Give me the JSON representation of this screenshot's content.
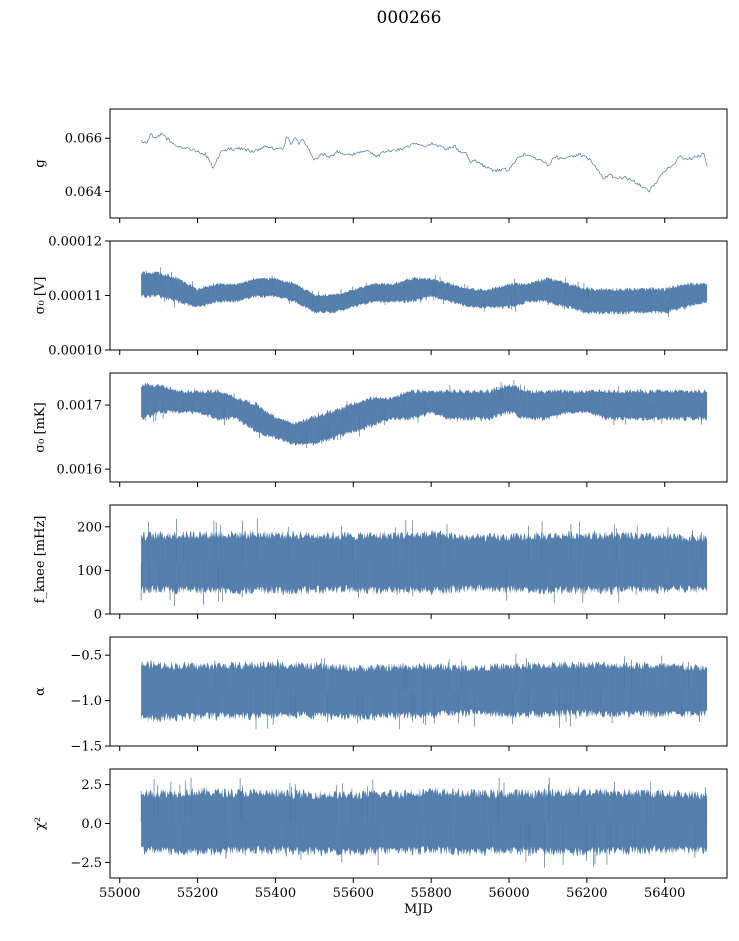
{
  "figure_title": "000266",
  "chart_data": [
    {
      "type": "line",
      "ylabel": "g",
      "ylim": [
        0.063,
        0.0671
      ],
      "yticks": [
        0.064,
        0.066
      ],
      "ytick_labels": [
        "0.064",
        "0.066"
      ],
      "xlim": [
        54975,
        56560
      ],
      "series": [
        {
          "x": [
            55055,
            55070,
            55080,
            55090,
            55100,
            55110,
            55120,
            55130,
            55150,
            55180,
            55200,
            55220,
            55240,
            55250,
            55260,
            55280,
            55300,
            55320,
            55340,
            55360,
            55380,
            55400,
            55420,
            55430,
            55440,
            55450,
            55460,
            55470,
            55480,
            55500,
            55520,
            55540,
            55560,
            55580,
            55600,
            55620,
            55640,
            55660,
            55680,
            55700,
            55720,
            55740,
            55760,
            55780,
            55800,
            55820,
            55840,
            55860,
            55880,
            55890,
            55900,
            55910,
            55920,
            55940,
            55960,
            55980,
            56000,
            56020,
            56040,
            56060,
            56080,
            56100,
            56120,
            56140,
            56160,
            56180,
            56200,
            56220,
            56240,
            56260,
            56280,
            56300,
            56320,
            56340,
            56360,
            56380,
            56400,
            56420,
            56440,
            56460,
            56480,
            56500,
            56510
          ],
          "y": [
            0.0659,
            0.0658,
            0.0662,
            0.066,
            0.0661,
            0.0662,
            0.066,
            0.0659,
            0.0657,
            0.0656,
            0.0655,
            0.0654,
            0.0649,
            0.0652,
            0.0655,
            0.0656,
            0.0656,
            0.0656,
            0.0655,
            0.0656,
            0.0657,
            0.0656,
            0.0656,
            0.0661,
            0.0658,
            0.066,
            0.0658,
            0.066,
            0.0657,
            0.0652,
            0.0654,
            0.0653,
            0.0655,
            0.0654,
            0.0654,
            0.0655,
            0.0655,
            0.0653,
            0.0655,
            0.0655,
            0.0656,
            0.0657,
            0.0658,
            0.0657,
            0.0658,
            0.0657,
            0.0656,
            0.0657,
            0.0654,
            0.0655,
            0.0651,
            0.0652,
            0.0651,
            0.0649,
            0.0648,
            0.0648,
            0.0648,
            0.0652,
            0.0654,
            0.0653,
            0.0652,
            0.065,
            0.0653,
            0.0652,
            0.0653,
            0.0654,
            0.0653,
            0.065,
            0.0645,
            0.0646,
            0.0645,
            0.0645,
            0.0644,
            0.0642,
            0.064,
            0.0644,
            0.0648,
            0.065,
            0.0653,
            0.0652,
            0.0653,
            0.0654,
            0.0649
          ]
        }
      ]
    },
    {
      "type": "area",
      "ylabel": "σ₀ [V]",
      "ylim": [
        0.0001,
        0.00012
      ],
      "yticks": [
        0.0001,
        0.00011,
        0.00012
      ],
      "ytick_labels": [
        "0.00010",
        "0.00011",
        "0.00012"
      ],
      "xlim": [
        54975,
        56560
      ],
      "series": [
        {
          "x": [
            55055,
            55100,
            55150,
            55200,
            55250,
            55300,
            55350,
            55400,
            55450,
            55500,
            55550,
            55600,
            55650,
            55700,
            55750,
            55800,
            55850,
            55900,
            55950,
            56000,
            56050,
            56100,
            56150,
            56200,
            56250,
            56300,
            56350,
            56400,
            56450,
            56510
          ],
          "upper": [
            0.000114,
            0.000114,
            0.000113,
            0.000111,
            0.000112,
            0.000112,
            0.000113,
            0.000113,
            0.000112,
            0.00011,
            0.00011,
            0.000111,
            0.000112,
            0.000112,
            0.000113,
            0.000113,
            0.000112,
            0.000111,
            0.000111,
            0.000112,
            0.000112,
            0.000113,
            0.000112,
            0.000111,
            0.000111,
            0.000111,
            0.000111,
            0.000111,
            0.000112,
            0.000112
          ],
          "lower": [
            0.00011,
            0.00011,
            0.000109,
            0.000108,
            0.000109,
            0.000109,
            0.00011,
            0.00011,
            0.000109,
            0.000107,
            0.000107,
            0.000108,
            0.000109,
            0.000109,
            0.000109,
            0.00011,
            0.000109,
            0.000108,
            0.000108,
            0.000108,
            0.000109,
            0.000109,
            0.000108,
            0.000107,
            0.000107,
            0.000107,
            0.000107,
            0.000107,
            0.000108,
            0.000109
          ]
        }
      ]
    },
    {
      "type": "area",
      "ylabel": "σ₀ [mK]",
      "ylim": [
        0.00158,
        0.00175
      ],
      "yticks": [
        0.0016,
        0.0017
      ],
      "ytick_labels": [
        "0.0016",
        "0.0017"
      ],
      "xlim": [
        54975,
        56560
      ],
      "series": [
        {
          "x": [
            55055,
            55100,
            55150,
            55200,
            55250,
            55300,
            55350,
            55400,
            55450,
            55500,
            55550,
            55600,
            55650,
            55700,
            55750,
            55800,
            55850,
            55900,
            55950,
            56000,
            56050,
            56100,
            56150,
            56200,
            56250,
            56300,
            56350,
            56400,
            56450,
            56510
          ],
          "upper": [
            0.00173,
            0.00173,
            0.00172,
            0.00172,
            0.00172,
            0.00171,
            0.0017,
            0.00168,
            0.00167,
            0.00168,
            0.00169,
            0.0017,
            0.00171,
            0.00171,
            0.00172,
            0.00172,
            0.00172,
            0.00172,
            0.00172,
            0.00173,
            0.00172,
            0.00172,
            0.00172,
            0.00172,
            0.00172,
            0.00172,
            0.00172,
            0.00172,
            0.00172,
            0.00172
          ],
          "lower": [
            0.00168,
            0.00169,
            0.00169,
            0.00169,
            0.00168,
            0.00168,
            0.00166,
            0.00165,
            0.00164,
            0.00164,
            0.00165,
            0.00166,
            0.00167,
            0.00168,
            0.00168,
            0.00169,
            0.00168,
            0.00168,
            0.00168,
            0.00169,
            0.00168,
            0.00168,
            0.00169,
            0.00169,
            0.00168,
            0.00168,
            0.00168,
            0.00168,
            0.00168,
            0.00168
          ]
        }
      ]
    },
    {
      "type": "area",
      "ylabel": "f_knee [mHz]",
      "ylim": [
        0,
        250
      ],
      "yticks": [
        0,
        100,
        200
      ],
      "ytick_labels": [
        "0",
        "100",
        "200"
      ],
      "xlim": [
        54975,
        56560
      ],
      "series": [
        {
          "x": [
            55055,
            55200,
            55400,
            55600,
            55800,
            55900,
            56000,
            56200,
            56400,
            56510
          ],
          "upper": [
            175,
            178,
            178,
            175,
            178,
            172,
            172,
            178,
            172,
            170
          ],
          "lower": [
            60,
            58,
            58,
            60,
            58,
            62,
            60,
            58,
            60,
            62
          ]
        }
      ]
    },
    {
      "type": "area",
      "ylabel": "α",
      "ylim": [
        -1.5,
        -0.3
      ],
      "yticks": [
        -1.5,
        -1.0,
        -0.5
      ],
      "ytick_labels": [
        "−1.5",
        "−1.0",
        "−0.5"
      ],
      "xlim": [
        54975,
        56560
      ],
      "series": [
        {
          "x": [
            55055,
            55200,
            55400,
            55600,
            55800,
            55900,
            56000,
            56200,
            56400,
            56510
          ],
          "upper": [
            -0.62,
            -0.64,
            -0.62,
            -0.66,
            -0.64,
            -0.66,
            -0.64,
            -0.62,
            -0.64,
            -0.66
          ],
          "lower": [
            -1.18,
            -1.16,
            -1.14,
            -1.16,
            -1.14,
            -1.12,
            -1.14,
            -1.12,
            -1.14,
            -1.12
          ]
        }
      ]
    },
    {
      "type": "area",
      "ylabel": "χ²",
      "xlabel": "MJD",
      "ylim": [
        -3.5,
        3.5
      ],
      "yticks": [
        -2.5,
        0.0,
        2.5
      ],
      "ytick_labels": [
        "−2.5",
        "0.0",
        "2.5"
      ],
      "xlim": [
        54975,
        56560
      ],
      "xticks": [
        55000,
        55200,
        55400,
        55600,
        55800,
        56000,
        56200,
        56400
      ],
      "xtick_labels": [
        "55000",
        "55200",
        "55400",
        "55600",
        "55800",
        "56000",
        "56200",
        "56400"
      ],
      "series": [
        {
          "x": [
            55055,
            55200,
            55400,
            55600,
            55800,
            55900,
            56000,
            56200,
            56400,
            56510
          ],
          "upper": [
            1.8,
            1.9,
            1.8,
            1.7,
            1.9,
            1.8,
            1.8,
            1.9,
            1.8,
            1.7
          ],
          "lower": [
            -1.6,
            -1.7,
            -1.6,
            -1.7,
            -1.6,
            -1.7,
            -1.6,
            -1.7,
            -1.6,
            -1.6
          ]
        }
      ]
    }
  ]
}
